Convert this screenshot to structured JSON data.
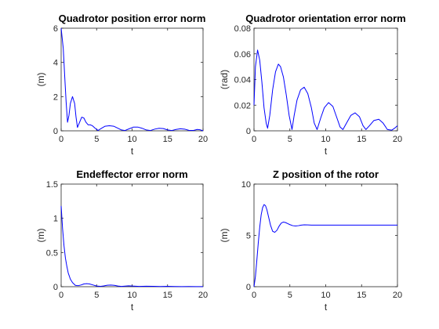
{
  "colors": {
    "series": "#0000ff",
    "axis": "#262626"
  },
  "chart_data": [
    {
      "type": "line",
      "title": "Quadrotor position error norm",
      "xlabel": "t",
      "ylabel": "(m)",
      "xlim": [
        0,
        20
      ],
      "ylim": [
        0,
        6
      ],
      "xticks": [
        "0",
        "5",
        "10",
        "15",
        "20"
      ],
      "yticks": [
        "0",
        "2",
        "4",
        "6"
      ],
      "series": [
        {
          "x": [
            0,
            0.3,
            0.5,
            0.7,
            0.9,
            1.1,
            1.3,
            1.6,
            1.9,
            2.1,
            2.3,
            2.6,
            2.9,
            3.2,
            3.5,
            3.8,
            4.1,
            4.4,
            4.8,
            5.2,
            5.7,
            6.2,
            6.8,
            7.4,
            8.0,
            8.5,
            9.0,
            9.6,
            10.2,
            10.8,
            11.4,
            12.0,
            12.6,
            13.2,
            13.8,
            14.4,
            15.0,
            15.6,
            16.2,
            16.8,
            17.4,
            18.0,
            18.6,
            19.2,
            19.6,
            20
          ],
          "y": [
            6.0,
            4.8,
            3.2,
            1.7,
            0.5,
            0.9,
            1.6,
            2.0,
            1.6,
            0.8,
            0.2,
            0.5,
            0.8,
            0.75,
            0.5,
            0.35,
            0.35,
            0.3,
            0.15,
            0.02,
            0.15,
            0.27,
            0.3,
            0.27,
            0.15,
            0.05,
            0.02,
            0.12,
            0.22,
            0.22,
            0.15,
            0.05,
            0.02,
            0.1,
            0.15,
            0.13,
            0.05,
            0.02,
            0.08,
            0.12,
            0.1,
            0.03,
            0.02,
            0.08,
            0.06,
            0.0
          ]
        }
      ]
    },
    {
      "type": "line",
      "title": "Quadrotor orientation error norm",
      "xlabel": "t",
      "ylabel": "(rad)",
      "xlim": [
        0,
        20
      ],
      "ylim": [
        0,
        0.08
      ],
      "xticks": [
        "0",
        "5",
        "10",
        "15",
        "20"
      ],
      "yticks": [
        "0",
        "0.02",
        "0.04",
        "0.06",
        "0.08"
      ],
      "series": [
        {
          "x": [
            0,
            0.2,
            0.5,
            0.8,
            1.1,
            1.4,
            1.7,
            1.9,
            2.2,
            2.6,
            3.0,
            3.4,
            3.7,
            4.1,
            4.5,
            4.9,
            5.3,
            5.6,
            6.0,
            6.5,
            7.0,
            7.5,
            8.0,
            8.4,
            8.8,
            9.3,
            9.8,
            10.4,
            11.0,
            11.5,
            12.0,
            12.4,
            12.9,
            13.5,
            14.1,
            14.7,
            15.2,
            15.6,
            16.1,
            16.7,
            17.4,
            18.0,
            18.6,
            19.2,
            19.6,
            20
          ],
          "y": [
            0.02,
            0.05,
            0.063,
            0.055,
            0.038,
            0.018,
            0.006,
            0.002,
            0.012,
            0.032,
            0.046,
            0.052,
            0.05,
            0.042,
            0.028,
            0.012,
            0.001,
            0.012,
            0.024,
            0.032,
            0.034,
            0.029,
            0.018,
            0.006,
            0.001,
            0.01,
            0.018,
            0.022,
            0.019,
            0.011,
            0.003,
            0.001,
            0.006,
            0.012,
            0.014,
            0.011,
            0.004,
            0.001,
            0.004,
            0.008,
            0.009,
            0.006,
            0.001,
            0.0005,
            0.002,
            0.004
          ]
        }
      ]
    },
    {
      "type": "line",
      "title": "Endeffector error norm",
      "xlabel": "t",
      "ylabel": "(m)",
      "xlim": [
        0,
        20
      ],
      "ylim": [
        0,
        1.5
      ],
      "xticks": [
        "0",
        "5",
        "10",
        "15",
        "20"
      ],
      "yticks": [
        "0",
        "0.5",
        "1",
        "1.5"
      ],
      "series": [
        {
          "x": [
            0,
            0.2,
            0.4,
            0.6,
            0.8,
            1.0,
            1.3,
            1.6,
            2.0,
            2.4,
            2.8,
            3.2,
            3.6,
            4.0,
            4.5,
            5.0,
            5.5,
            6.0,
            6.5,
            7.0,
            7.5,
            8.0,
            8.5,
            9.0,
            9.5,
            10.0,
            11.0,
            12.0,
            13.0,
            14.0,
            15.0,
            16.0,
            17.0,
            18.0,
            19.0,
            20
          ],
          "y": [
            1.18,
            0.85,
            0.6,
            0.42,
            0.3,
            0.2,
            0.11,
            0.06,
            0.02,
            0.015,
            0.025,
            0.04,
            0.045,
            0.04,
            0.025,
            0.01,
            0.005,
            0.012,
            0.022,
            0.025,
            0.02,
            0.01,
            0.004,
            0.008,
            0.013,
            0.01,
            0.004,
            0.007,
            0.005,
            0.003,
            0.005,
            0.003,
            0.002,
            0.003,
            0.002,
            0.002
          ]
        }
      ]
    },
    {
      "type": "line",
      "title": "Z position of the rotor",
      "xlabel": "t",
      "ylabel": "(m)",
      "xlim": [
        0,
        20
      ],
      "ylim": [
        0,
        10
      ],
      "xticks": [
        "0",
        "5",
        "10",
        "15",
        "20"
      ],
      "yticks": [
        "0",
        "5",
        "10"
      ],
      "series": [
        {
          "x": [
            0,
            0.2,
            0.4,
            0.6,
            0.8,
            1.0,
            1.2,
            1.4,
            1.6,
            1.8,
            2.0,
            2.3,
            2.6,
            2.9,
            3.2,
            3.5,
            3.8,
            4.1,
            4.4,
            4.7,
            5.0,
            5.4,
            5.8,
            6.2,
            6.6,
            7.0,
            7.5,
            8.0,
            9.0,
            10.0,
            12.0,
            14.0,
            16.0,
            18.0,
            20
          ],
          "y": [
            0.0,
            1.0,
            2.6,
            4.3,
            5.8,
            7.0,
            7.7,
            8.0,
            7.9,
            7.5,
            6.9,
            6.0,
            5.4,
            5.3,
            5.5,
            5.9,
            6.2,
            6.3,
            6.25,
            6.15,
            6.05,
            5.95,
            5.92,
            5.95,
            6.0,
            6.03,
            6.02,
            6.0,
            6.0,
            6.0,
            6.0,
            6.0,
            6.0,
            6.0,
            6.0
          ]
        }
      ]
    }
  ]
}
